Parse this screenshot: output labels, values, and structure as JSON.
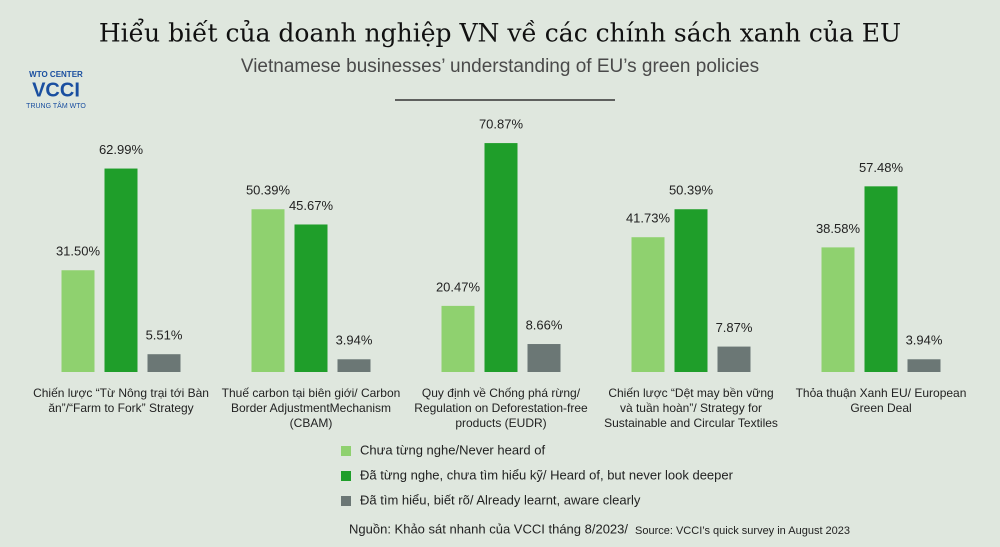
{
  "chart_data": {
    "type": "bar",
    "title": "Hiểu biết của doanh nghiệp VN về các chính sách xanh của EU",
    "subtitle": "Vietnamese businesses’ understanding of EU’s green policies",
    "logo": [
      "WTO CENTER",
      "VCCI",
      "TRUNG TÂM WTO"
    ],
    "categories": [
      "Chiến lược “Từ Nông trại tới Bàn ăn”/“Farm to Fork” Strategy",
      "Thuế carbon tại biên giới/ Carbon Border AdjustmentMechanism (CBAM)",
      "Quy định về Chống phá rừng/ Regulation on Deforestation-free products (EUDR)",
      "Chiến lược “Dệt may bền vững và tuần hoàn”/ Strategy for Sustainable and Circular Textiles",
      "Thỏa thuận Xanh EU/ European Green Deal"
    ],
    "series": [
      {
        "name": "Chưa từng nghe/Never heard of",
        "color": "#8fd16f",
        "values": [
          31.5,
          50.39,
          20.47,
          41.73,
          38.58
        ],
        "value_labels": [
          "31.50%",
          "50.39%",
          "20.47%",
          "41.73%",
          "38.58%"
        ]
      },
      {
        "name": "Đã từng nghe, chưa tìm hiểu kỹ/ Heard of, but never look deeper",
        "color": "#1f9e2a",
        "values": [
          62.99,
          45.67,
          70.87,
          50.39,
          57.48
        ],
        "value_labels": [
          "62.99%",
          "45.67%",
          "70.87%",
          "50.39%",
          "57.48%"
        ]
      },
      {
        "name": "Đã tìm hiểu, biết rõ/ Already learnt, aware clearly",
        "color": "#6b7775",
        "values": [
          5.51,
          3.94,
          8.66,
          7.87,
          3.94
        ],
        "value_labels": [
          "5.51%",
          "3.94%",
          "8.66%",
          "7.87%",
          "3.94%"
        ]
      }
    ],
    "source": [
      "Nguồn: Khảo sát nhanh của VCCI tháng 8/2023/",
      "Source: VCCI’s quick survey in August 2023"
    ]
  }
}
